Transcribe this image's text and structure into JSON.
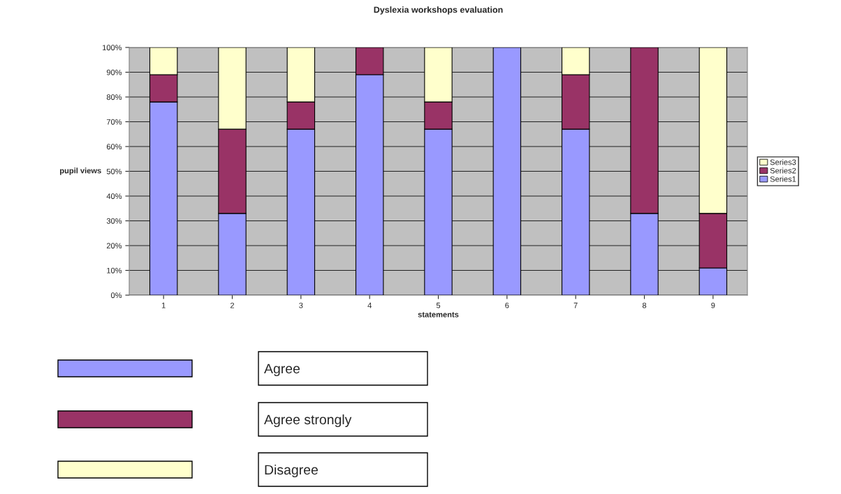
{
  "chart_data": {
    "type": "bar",
    "title": "Dyslexia workshops evaluation",
    "xlabel": "statements",
    "ylabel": "pupil views",
    "categories": [
      "1",
      "2",
      "3",
      "4",
      "5",
      "6",
      "7",
      "8",
      "9"
    ],
    "stacked": true,
    "series": [
      {
        "name": "Series1",
        "color": "#9999ff",
        "values": [
          78,
          33,
          67,
          89,
          67,
          100,
          67,
          33,
          11
        ]
      },
      {
        "name": "Series2",
        "color": "#993366",
        "values": [
          11,
          34,
          11,
          11,
          11,
          null,
          22,
          67,
          22
        ]
      },
      {
        "name": "Series3",
        "color": "#ffffcc",
        "values": [
          11,
          33,
          22,
          null,
          22,
          null,
          11,
          null,
          67
        ]
      }
    ],
    "ylim": [
      0,
      100
    ],
    "yticks": [
      {
        "value": 0,
        "label": "0%"
      },
      {
        "value": 10,
        "label": "10%"
      },
      {
        "value": 20,
        "label": "20%"
      },
      {
        "value": 30,
        "label": "30%"
      },
      {
        "value": 40,
        "label": "40%"
      },
      {
        "value": 50,
        "label": "50%"
      },
      {
        "value": 60,
        "label": "60%"
      },
      {
        "value": 70,
        "label": "70%"
      },
      {
        "value": 80,
        "label": "80%"
      },
      {
        "value": 90,
        "label": "90%"
      },
      {
        "value": 100,
        "label": "100%"
      }
    ],
    "grid": "y",
    "legend": "right",
    "annotations": [
      "Agree",
      "Agree strongly",
      "Disagree"
    ]
  }
}
